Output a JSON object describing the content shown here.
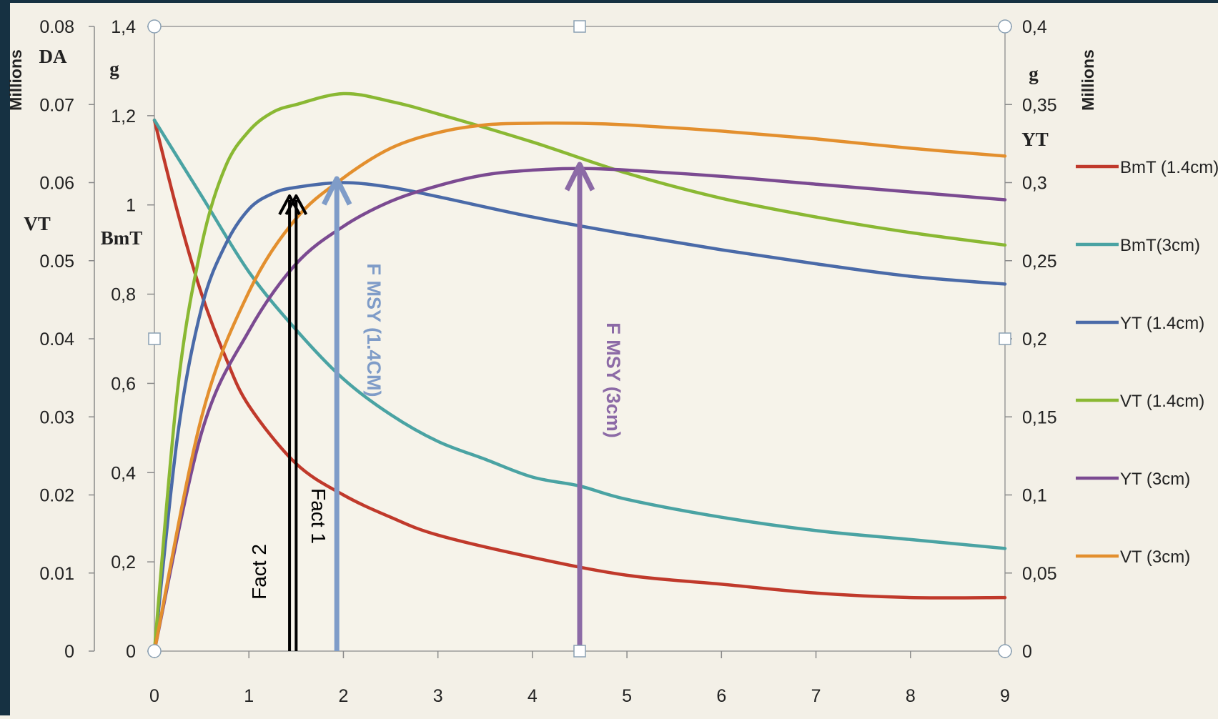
{
  "chart_data": {
    "type": "line",
    "x_ticks": [
      0,
      1,
      2,
      3,
      4,
      5,
      6,
      7,
      8,
      9
    ],
    "xlim": [
      0,
      9
    ],
    "axes": {
      "left_outer": {
        "units": "Millions",
        "labels": [
          "DA",
          "VT"
        ],
        "ticks": [
          "0",
          "0.01",
          "0.02",
          "0.03",
          "0.04",
          "0.05",
          "0.06",
          "0.07",
          "0.08"
        ],
        "ylim": [
          0,
          0.08
        ]
      },
      "left_inner": {
        "labels": [
          "g",
          "BmT"
        ],
        "ticks": [
          "0",
          "0,2",
          "0,4",
          "0,6",
          "0,8",
          "1",
          "1,2",
          "1,4"
        ],
        "ylim": [
          0,
          1.4
        ]
      },
      "right_inner": {
        "labels": [
          "g",
          "YT"
        ],
        "ticks": [
          "0",
          "0,05",
          "0,1",
          "0,15",
          "0,2",
          "0,25",
          "0,3",
          "0,35",
          "0,4"
        ],
        "ylim": [
          0,
          0.4
        ]
      },
      "right_outer": {
        "units": "Millions"
      }
    },
    "legend_position": "right",
    "series": [
      {
        "name": "BmT (1.4cm)",
        "color": "#c0392b",
        "axis": "left_inner",
        "x": [
          0,
          0.25,
          0.5,
          0.75,
          1,
          1.5,
          2,
          2.5,
          3,
          4,
          5,
          6,
          7,
          8,
          9
        ],
        "y": [
          1.19,
          0.98,
          0.8,
          0.66,
          0.55,
          0.42,
          0.35,
          0.3,
          0.26,
          0.21,
          0.17,
          0.15,
          0.13,
          0.12,
          0.12
        ]
      },
      {
        "name": "BmT(3cm)",
        "color": "#4aa3a3",
        "axis": "left_inner",
        "x": [
          0,
          0.5,
          1,
          1.5,
          2,
          2.5,
          3,
          3.5,
          4,
          4.5,
          5,
          6,
          7,
          8,
          9
        ],
        "y": [
          1.19,
          1.02,
          0.85,
          0.72,
          0.61,
          0.53,
          0.47,
          0.43,
          0.39,
          0.37,
          0.34,
          0.3,
          0.27,
          0.25,
          0.23
        ]
      },
      {
        "name": "YT (1.4cm)",
        "color": "#4a6aa8",
        "axis": "right_inner",
        "x": [
          0,
          0.25,
          0.5,
          0.75,
          1,
          1.25,
          1.5,
          2,
          2.5,
          3,
          4,
          5,
          6,
          7,
          8,
          9
        ],
        "y": [
          0,
          0.14,
          0.22,
          0.26,
          0.283,
          0.293,
          0.297,
          0.3,
          0.297,
          0.291,
          0.278,
          0.267,
          0.257,
          0.248,
          0.24,
          0.235
        ]
      },
      {
        "name": "VT (1.4cm)",
        "color": "#8ab833",
        "axis": "right_inner",
        "x": [
          0,
          0.25,
          0.5,
          0.75,
          1,
          1.25,
          1.5,
          2,
          2.5,
          3,
          4,
          5,
          6,
          7,
          8,
          9
        ],
        "y": [
          0,
          0.17,
          0.26,
          0.31,
          0.333,
          0.345,
          0.35,
          0.357,
          0.352,
          0.344,
          0.326,
          0.306,
          0.29,
          0.278,
          0.268,
          0.26
        ]
      },
      {
        "name": "YT (3cm)",
        "color": "#7b4a91",
        "axis": "right_inner",
        "x": [
          0,
          0.5,
          1,
          1.5,
          2,
          2.5,
          3,
          3.5,
          4,
          4.5,
          5,
          6,
          7,
          8,
          9
        ],
        "y": [
          0,
          0.14,
          0.205,
          0.248,
          0.272,
          0.288,
          0.298,
          0.305,
          0.308,
          0.309,
          0.308,
          0.304,
          0.299,
          0.294,
          0.289
        ]
      },
      {
        "name": "VT (3cm)",
        "color": "#e38f2e",
        "axis": "right_inner",
        "x": [
          0,
          0.5,
          1,
          1.5,
          2,
          2.5,
          3,
          3.5,
          4,
          4.5,
          5,
          6,
          7,
          8,
          9
        ],
        "y": [
          0,
          0.15,
          0.23,
          0.277,
          0.303,
          0.322,
          0.332,
          0.337,
          0.338,
          0.338,
          0.337,
          0.333,
          0.328,
          0.322,
          0.317
        ]
      }
    ],
    "annotations": [
      {
        "text": "Fact 2",
        "x": 1.43,
        "color": "#000000"
      },
      {
        "text": "Fact 1",
        "x": 1.5,
        "color": "#000000"
      },
      {
        "text": "F MSY (1.4CM)",
        "x": 1.93,
        "color": "#7f9cc8"
      },
      {
        "text": "F MSY (3cm)",
        "x": 4.5,
        "color": "#8c6aa6"
      }
    ]
  }
}
